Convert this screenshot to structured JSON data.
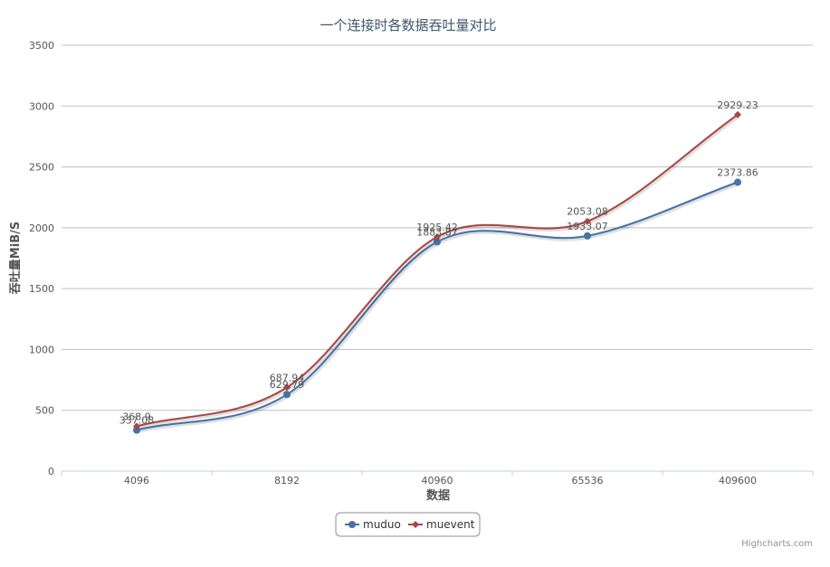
{
  "chart_data": {
    "type": "line",
    "title": "一个连接时各数据吞吐量对比",
    "xlabel": "数据",
    "ylabel": "吞吐量MiB/S",
    "categories": [
      "4096",
      "8192",
      "40960",
      "65536",
      "409600"
    ],
    "ylim": [
      0,
      3500
    ],
    "yticks": [
      0,
      500,
      1000,
      1500,
      2000,
      2500,
      3000,
      3500
    ],
    "grid": true,
    "legend_position": "bottom-center",
    "series": [
      {
        "name": "muduo",
        "color": "#4572a7",
        "marker": "circle",
        "values": [
          337.08,
          629.79,
          1883.87,
          1933.07,
          2373.86
        ],
        "labels": [
          "337.08",
          "629.79",
          "1883.87",
          "1933.07",
          "2373.86"
        ]
      },
      {
        "name": "muevent",
        "color": "#aa4643",
        "marker": "diamond",
        "values": [
          368.9,
          687.94,
          1925.42,
          2053.08,
          2929.23
        ],
        "labels": [
          "368.9",
          "687.94",
          "1925.42",
          "2053.08",
          "2929.23"
        ]
      }
    ],
    "credits": "Highcharts.com"
  }
}
